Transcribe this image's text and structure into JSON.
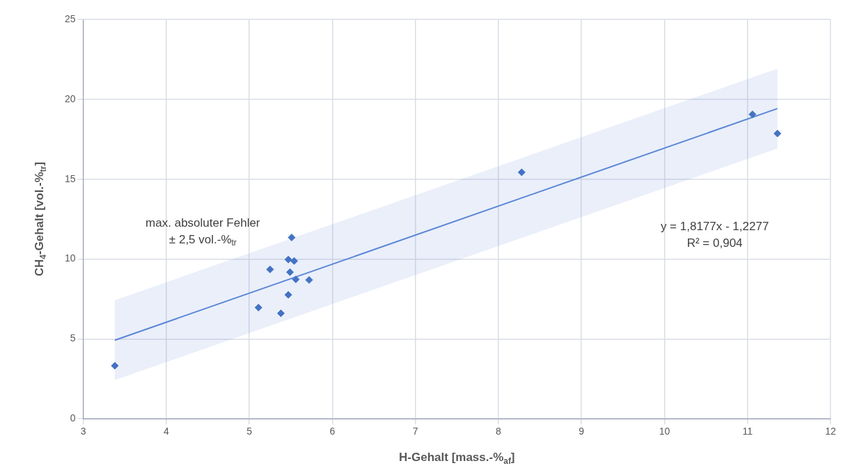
{
  "chart_data": {
    "type": "scatter",
    "xlabel": "H-Gehalt [mass.-%$_{af}$]",
    "ylabel": "CH$_{4}$-Gehalt [vol.-%$_{tr}$]",
    "xlim": [
      3,
      12
    ],
    "xticks": [
      3,
      4,
      5,
      6,
      7,
      8,
      9,
      10,
      11,
      12
    ],
    "ylim": [
      0,
      25
    ],
    "yticks": [
      0,
      5,
      10,
      15,
      20,
      25
    ],
    "grid": true,
    "legend": false,
    "marker": "diamond",
    "series": [
      {
        "color": "#4472c4",
        "x": [
          3.38,
          11.06,
          11.36,
          8.28,
          5.51,
          5.47,
          5.54,
          5.25,
          5.49,
          5.56,
          5.72,
          5.47,
          5.11,
          5.38
        ],
        "values": [
          3.32,
          19.06,
          17.86,
          15.43,
          11.35,
          9.97,
          9.88,
          9.35,
          9.18,
          8.73,
          8.69,
          7.76,
          6.96,
          6.6
        ]
      },
      {
        "type": "line",
        "color": "#5b86d6",
        "x": [
          3.38,
          11.36
        ],
        "values": [
          4.92,
          19.42
        ],
        "lower": [
          2.42,
          16.92
        ],
        "upper": [
          7.42,
          21.92
        ],
        "marker": "none",
        "line_style": "solid"
      }
    ],
    "annotations": [
      "max. absoluter Fehler\n± 2,5 vol.-%$_{tr}$",
      "y = 1,8177x - 1,2277\nR² = 0,904"
    ]
  }
}
